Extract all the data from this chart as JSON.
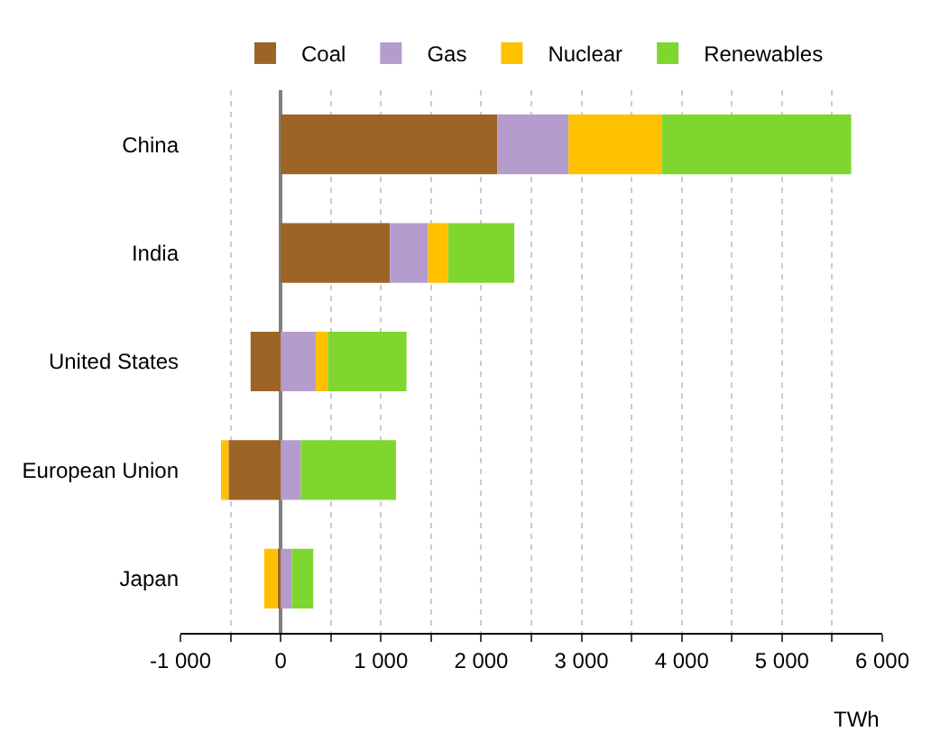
{
  "chart_data": {
    "type": "bar",
    "orientation": "horizontal",
    "stacked": true,
    "categories": [
      "China",
      "India",
      "United States",
      "European Union",
      "Japan"
    ],
    "series": [
      {
        "name": "Coal",
        "color": "#9c6426",
        "values": [
          2160,
          1090,
          -300,
          -520,
          -30
        ]
      },
      {
        "name": "Gas",
        "color": "#b49ccc",
        "values": [
          710,
          380,
          350,
          200,
          110
        ]
      },
      {
        "name": "Nuclear",
        "color": "#ffc000",
        "values": [
          930,
          200,
          120,
          -75,
          -135
        ]
      },
      {
        "name": "Renewables",
        "color": "#7ed62e",
        "values": [
          1890,
          660,
          785,
          950,
          215
        ]
      }
    ],
    "xlabel": "TWh",
    "xlim": [
      -1000,
      6000
    ],
    "xticks": [
      {
        "value": -1000,
        "label": "-1 000"
      },
      {
        "value": -500,
        "label": null
      },
      0,
      {
        "value": 500,
        "label": null
      },
      {
        "value": 1000,
        "label": "1 000"
      },
      {
        "value": 1500,
        "label": null
      },
      {
        "value": 2000,
        "label": "2 000"
      },
      {
        "value": 2500,
        "label": null
      },
      {
        "value": 3000,
        "label": "3 000"
      },
      {
        "value": 3500,
        "label": null
      },
      {
        "value": 4000,
        "label": "4 000"
      },
      {
        "value": 4500,
        "label": null
      },
      {
        "value": 5000,
        "label": "5 000"
      },
      {
        "value": 5500,
        "label": null
      },
      {
        "value": 6000,
        "label": "6 000"
      }
    ],
    "grid": "x",
    "legend": "top"
  }
}
